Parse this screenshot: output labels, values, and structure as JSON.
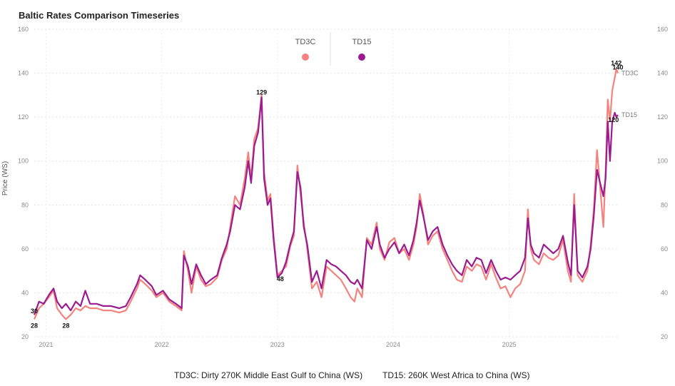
{
  "chart_data": {
    "type": "line",
    "title": "Baltic Rates Comparison Timeseries",
    "ylabel": "Price (WS)",
    "ylim": [
      20,
      160
    ],
    "yticks": [
      20,
      40,
      60,
      80,
      100,
      120,
      140,
      160
    ],
    "xlim": [
      "2020-11-25",
      "2025-12-10"
    ],
    "xticks": [
      "2021",
      "2022",
      "2023",
      "2024",
      "2025"
    ],
    "grid": true,
    "legend_position": "top-center",
    "series": [
      {
        "name": "TD3C",
        "color": "#f4837d",
        "end_label": "TD3C",
        "points": [
          [
            "2020-11-25",
            28
          ],
          [
            "2020-12-10",
            33
          ],
          [
            "2020-12-25",
            35
          ],
          [
            "2021-01-10",
            38
          ],
          [
            "2021-01-25",
            41
          ],
          [
            "2021-02-05",
            33
          ],
          [
            "2021-02-20",
            30
          ],
          [
            "2021-03-05",
            28
          ],
          [
            "2021-03-20",
            30
          ],
          [
            "2021-04-05",
            33
          ],
          [
            "2021-04-20",
            32
          ],
          [
            "2021-05-05",
            34
          ],
          [
            "2021-05-20",
            33
          ],
          [
            "2021-06-10",
            33
          ],
          [
            "2021-07-01",
            32
          ],
          [
            "2021-07-25",
            32
          ],
          [
            "2021-08-20",
            31
          ],
          [
            "2021-09-10",
            32
          ],
          [
            "2021-09-25",
            36
          ],
          [
            "2021-10-15",
            42
          ],
          [
            "2021-10-25",
            46
          ],
          [
            "2021-11-10",
            44
          ],
          [
            "2021-12-01",
            41
          ],
          [
            "2021-12-15",
            38
          ],
          [
            "2022-01-05",
            40
          ],
          [
            "2022-01-25",
            36
          ],
          [
            "2022-02-15",
            34
          ],
          [
            "2022-03-05",
            32
          ],
          [
            "2022-03-12",
            59
          ],
          [
            "2022-03-25",
            50
          ],
          [
            "2022-04-05",
            40
          ],
          [
            "2022-04-20",
            52
          ],
          [
            "2022-05-05",
            46
          ],
          [
            "2022-05-20",
            43
          ],
          [
            "2022-06-05",
            44
          ],
          [
            "2022-06-25",
            47
          ],
          [
            "2022-07-10",
            55
          ],
          [
            "2022-07-25",
            60
          ],
          [
            "2022-08-05",
            70
          ],
          [
            "2022-08-20",
            84
          ],
          [
            "2022-09-05",
            80
          ],
          [
            "2022-09-20",
            92
          ],
          [
            "2022-10-01",
            104
          ],
          [
            "2022-10-10",
            92
          ],
          [
            "2022-10-20",
            110
          ],
          [
            "2022-11-01",
            115
          ],
          [
            "2022-11-12",
            130
          ],
          [
            "2022-11-20",
            95
          ],
          [
            "2022-12-01",
            82
          ],
          [
            "2022-12-10",
            85
          ],
          [
            "2022-12-20",
            66
          ],
          [
            "2023-01-01",
            48
          ],
          [
            "2023-01-15",
            50
          ],
          [
            "2023-01-28",
            52
          ],
          [
            "2023-02-10",
            61
          ],
          [
            "2023-02-22",
            66
          ],
          [
            "2023-03-05",
            98
          ],
          [
            "2023-03-15",
            85
          ],
          [
            "2023-03-25",
            72
          ],
          [
            "2023-04-05",
            60
          ],
          [
            "2023-04-20",
            42
          ],
          [
            "2023-05-05",
            45
          ],
          [
            "2023-05-20",
            38
          ],
          [
            "2023-06-05",
            52
          ],
          [
            "2023-06-20",
            50
          ],
          [
            "2023-07-05",
            48
          ],
          [
            "2023-07-20",
            46
          ],
          [
            "2023-08-05",
            42
          ],
          [
            "2023-08-20",
            38
          ],
          [
            "2023-09-01",
            36
          ],
          [
            "2023-09-10",
            42
          ],
          [
            "2023-09-25",
            38
          ],
          [
            "2023-10-10",
            65
          ],
          [
            "2023-10-25",
            62
          ],
          [
            "2023-11-10",
            72
          ],
          [
            "2023-11-20",
            60
          ],
          [
            "2023-12-05",
            55
          ],
          [
            "2023-12-20",
            63
          ],
          [
            "2024-01-05",
            65
          ],
          [
            "2024-01-20",
            58
          ],
          [
            "2024-02-05",
            60
          ],
          [
            "2024-02-20",
            55
          ],
          [
            "2024-03-05",
            62
          ],
          [
            "2024-03-15",
            70
          ],
          [
            "2024-03-25",
            85
          ],
          [
            "2024-04-05",
            76
          ],
          [
            "2024-04-20",
            62
          ],
          [
            "2024-05-05",
            66
          ],
          [
            "2024-05-20",
            68
          ],
          [
            "2024-06-05",
            60
          ],
          [
            "2024-06-20",
            55
          ],
          [
            "2024-07-05",
            50
          ],
          [
            "2024-07-20",
            46
          ],
          [
            "2024-08-05",
            45
          ],
          [
            "2024-08-20",
            52
          ],
          [
            "2024-09-05",
            50
          ],
          [
            "2024-09-20",
            53
          ],
          [
            "2024-10-05",
            52
          ],
          [
            "2024-10-20",
            46
          ],
          [
            "2024-11-05",
            53
          ],
          [
            "2024-11-20",
            47
          ],
          [
            "2024-12-05",
            42
          ],
          [
            "2024-12-20",
            43
          ],
          [
            "2025-01-05",
            38
          ],
          [
            "2025-01-20",
            42
          ],
          [
            "2025-02-05",
            44
          ],
          [
            "2025-02-20",
            50
          ],
          [
            "2025-03-01",
            78
          ],
          [
            "2025-03-10",
            60
          ],
          [
            "2025-03-20",
            55
          ],
          [
            "2025-04-05",
            53
          ],
          [
            "2025-04-20",
            58
          ],
          [
            "2025-05-05",
            56
          ],
          [
            "2025-05-20",
            55
          ],
          [
            "2025-06-05",
            57
          ],
          [
            "2025-06-20",
            64
          ],
          [
            "2025-07-05",
            50
          ],
          [
            "2025-07-15",
            45
          ],
          [
            "2025-07-25",
            85
          ],
          [
            "2025-08-05",
            48
          ],
          [
            "2025-08-20",
            45
          ],
          [
            "2025-09-05",
            50
          ],
          [
            "2025-09-15",
            62
          ],
          [
            "2025-09-25",
            78
          ],
          [
            "2025-10-05",
            105
          ],
          [
            "2025-10-15",
            88
          ],
          [
            "2025-10-25",
            70
          ],
          [
            "2025-11-01",
            95
          ],
          [
            "2025-11-08",
            128
          ],
          [
            "2025-11-15",
            118
          ],
          [
            "2025-11-22",
            132
          ],
          [
            "2025-11-30",
            138
          ],
          [
            "2025-12-05",
            142
          ],
          [
            "2025-12-10",
            140
          ]
        ]
      },
      {
        "name": "TD15",
        "color": "#9b1c91",
        "end_label": "TD15",
        "points": [
          [
            "2020-11-25",
            30
          ],
          [
            "2020-12-10",
            36
          ],
          [
            "2020-12-25",
            35
          ],
          [
            "2021-01-10",
            39
          ],
          [
            "2021-01-25",
            42
          ],
          [
            "2021-02-05",
            36
          ],
          [
            "2021-02-20",
            33
          ],
          [
            "2021-03-05",
            35
          ],
          [
            "2021-03-20",
            32
          ],
          [
            "2021-04-05",
            36
          ],
          [
            "2021-04-20",
            34
          ],
          [
            "2021-05-05",
            41
          ],
          [
            "2021-05-20",
            35
          ],
          [
            "2021-06-10",
            35
          ],
          [
            "2021-07-01",
            34
          ],
          [
            "2021-07-25",
            34
          ],
          [
            "2021-08-20",
            33
          ],
          [
            "2021-09-10",
            34
          ],
          [
            "2021-09-25",
            38
          ],
          [
            "2021-10-15",
            44
          ],
          [
            "2021-10-25",
            48
          ],
          [
            "2021-11-10",
            46
          ],
          [
            "2021-12-01",
            43
          ],
          [
            "2021-12-15",
            39
          ],
          [
            "2022-01-05",
            41
          ],
          [
            "2022-01-25",
            37
          ],
          [
            "2022-02-15",
            35
          ],
          [
            "2022-03-05",
            33
          ],
          [
            "2022-03-12",
            57
          ],
          [
            "2022-03-25",
            52
          ],
          [
            "2022-04-05",
            44
          ],
          [
            "2022-04-20",
            53
          ],
          [
            "2022-05-05",
            48
          ],
          [
            "2022-05-20",
            44
          ],
          [
            "2022-06-05",
            46
          ],
          [
            "2022-06-25",
            48
          ],
          [
            "2022-07-10",
            56
          ],
          [
            "2022-07-25",
            62
          ],
          [
            "2022-08-05",
            68
          ],
          [
            "2022-08-20",
            80
          ],
          [
            "2022-09-05",
            78
          ],
          [
            "2022-09-20",
            88
          ],
          [
            "2022-10-01",
            100
          ],
          [
            "2022-10-10",
            90
          ],
          [
            "2022-10-20",
            107
          ],
          [
            "2022-11-01",
            113
          ],
          [
            "2022-11-12",
            129
          ],
          [
            "2022-11-20",
            92
          ],
          [
            "2022-12-01",
            80
          ],
          [
            "2022-12-10",
            83
          ],
          [
            "2022-12-20",
            64
          ],
          [
            "2023-01-01",
            47
          ],
          [
            "2023-01-15",
            49
          ],
          [
            "2023-01-28",
            54
          ],
          [
            "2023-02-10",
            62
          ],
          [
            "2023-02-22",
            68
          ],
          [
            "2023-03-05",
            95
          ],
          [
            "2023-03-15",
            88
          ],
          [
            "2023-03-25",
            70
          ],
          [
            "2023-04-05",
            62
          ],
          [
            "2023-04-20",
            45
          ],
          [
            "2023-05-05",
            50
          ],
          [
            "2023-05-20",
            42
          ],
          [
            "2023-06-05",
            55
          ],
          [
            "2023-06-20",
            53
          ],
          [
            "2023-07-05",
            52
          ],
          [
            "2023-07-20",
            50
          ],
          [
            "2023-08-05",
            48
          ],
          [
            "2023-08-20",
            45
          ],
          [
            "2023-09-01",
            44
          ],
          [
            "2023-09-10",
            46
          ],
          [
            "2023-09-25",
            42
          ],
          [
            "2023-10-10",
            64
          ],
          [
            "2023-10-25",
            60
          ],
          [
            "2023-11-10",
            70
          ],
          [
            "2023-11-20",
            62
          ],
          [
            "2023-12-05",
            56
          ],
          [
            "2023-12-20",
            60
          ],
          [
            "2024-01-05",
            63
          ],
          [
            "2024-01-20",
            58
          ],
          [
            "2024-02-05",
            62
          ],
          [
            "2024-02-20",
            57
          ],
          [
            "2024-03-05",
            64
          ],
          [
            "2024-03-15",
            72
          ],
          [
            "2024-03-25",
            82
          ],
          [
            "2024-04-05",
            75
          ],
          [
            "2024-04-20",
            64
          ],
          [
            "2024-05-05",
            68
          ],
          [
            "2024-05-20",
            70
          ],
          [
            "2024-06-05",
            62
          ],
          [
            "2024-06-20",
            57
          ],
          [
            "2024-07-05",
            53
          ],
          [
            "2024-07-20",
            50
          ],
          [
            "2024-08-05",
            48
          ],
          [
            "2024-08-20",
            55
          ],
          [
            "2024-09-05",
            52
          ],
          [
            "2024-09-20",
            56
          ],
          [
            "2024-10-05",
            55
          ],
          [
            "2024-10-20",
            49
          ],
          [
            "2024-11-05",
            55
          ],
          [
            "2024-11-20",
            50
          ],
          [
            "2024-12-05",
            46
          ],
          [
            "2024-12-20",
            47
          ],
          [
            "2025-01-05",
            46
          ],
          [
            "2025-01-20",
            48
          ],
          [
            "2025-02-05",
            50
          ],
          [
            "2025-02-20",
            56
          ],
          [
            "2025-03-01",
            74
          ],
          [
            "2025-03-10",
            62
          ],
          [
            "2025-03-20",
            58
          ],
          [
            "2025-04-05",
            56
          ],
          [
            "2025-04-20",
            62
          ],
          [
            "2025-05-05",
            60
          ],
          [
            "2025-05-20",
            58
          ],
          [
            "2025-06-05",
            60
          ],
          [
            "2025-06-20",
            66
          ],
          [
            "2025-07-05",
            54
          ],
          [
            "2025-07-15",
            48
          ],
          [
            "2025-07-25",
            80
          ],
          [
            "2025-08-05",
            50
          ],
          [
            "2025-08-20",
            47
          ],
          [
            "2025-09-05",
            52
          ],
          [
            "2025-09-15",
            60
          ],
          [
            "2025-09-25",
            75
          ],
          [
            "2025-10-05",
            96
          ],
          [
            "2025-10-15",
            90
          ],
          [
            "2025-10-25",
            84
          ],
          [
            "2025-11-01",
            92
          ],
          [
            "2025-11-08",
            118
          ],
          [
            "2025-11-15",
            100
          ],
          [
            "2025-11-22",
            118
          ],
          [
            "2025-11-30",
            122
          ],
          [
            "2025-12-05",
            120
          ],
          [
            "2025-12-10",
            121
          ]
        ]
      }
    ],
    "data_labels": [
      {
        "text": "30",
        "date": "2020-11-25",
        "value": 30
      },
      {
        "text": "28",
        "date": "2020-11-25",
        "value": 28
      },
      {
        "text": "28",
        "date": "2021-03-05",
        "value": 28
      },
      {
        "text": "129",
        "date": "2022-11-12",
        "value": 129
      },
      {
        "text": "48",
        "date": "2023-01-01",
        "value": 48
      },
      {
        "text": "142",
        "date": "2025-12-05",
        "value": 142
      },
      {
        "text": "140",
        "date": "2025-12-10",
        "value": 140
      },
      {
        "text": "120",
        "date": "2025-12-05",
        "value": 120
      }
    ],
    "footnotes": [
      "TD3C: Dirty 270K Middle East Gulf to China (WS)",
      "TD15: 260K West Africa to China (WS)"
    ]
  }
}
